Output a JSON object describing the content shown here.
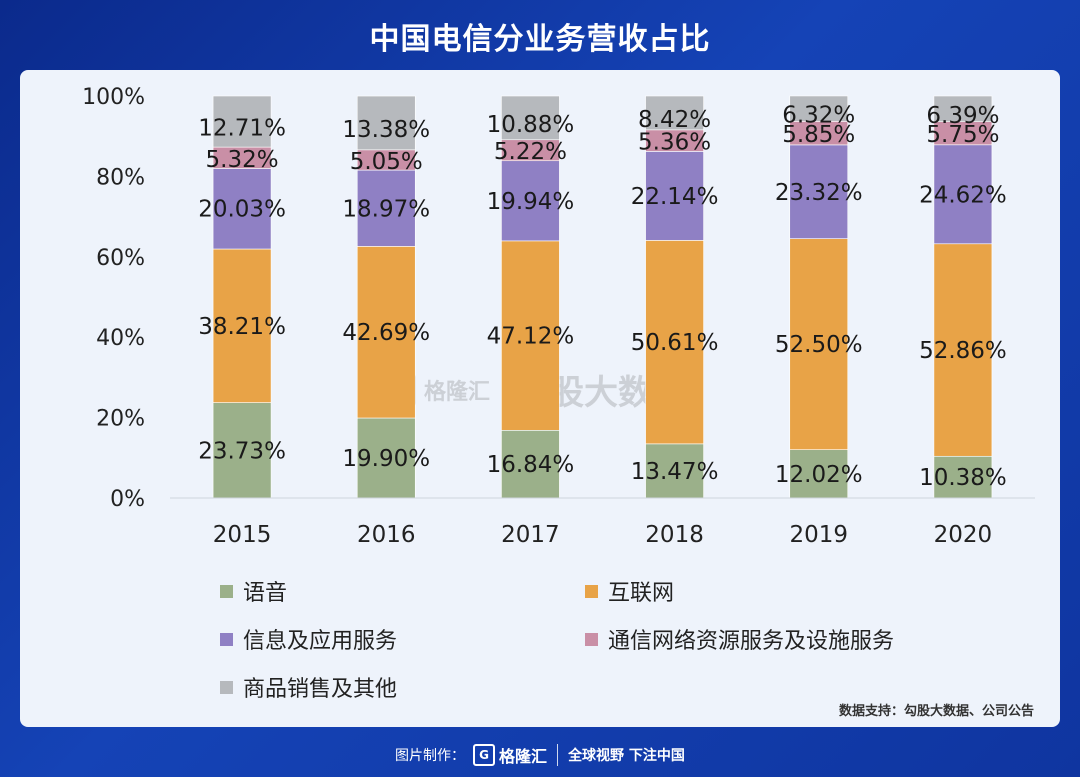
{
  "header": {
    "title": "中国电信分业务营收占比"
  },
  "chart_data": {
    "type": "stacked-bar",
    "title": "中国电信分业务营收占比",
    "categories": [
      "2015",
      "2016",
      "2017",
      "2018",
      "2019",
      "2020"
    ],
    "ylim": [
      0,
      100
    ],
    "yticks": [
      "0%",
      "20%",
      "40%",
      "60%",
      "80%",
      "100%"
    ],
    "series": [
      {
        "name": "语音",
        "color": "#9bb08a",
        "values": [
          23.73,
          19.9,
          16.84,
          13.47,
          12.02,
          10.38
        ],
        "labels": [
          "23.73%",
          "19.90%",
          "16.84%",
          "13.47%",
          "12.02%",
          "10.38%"
        ]
      },
      {
        "name": "互联网",
        "color": "#e8a347",
        "values": [
          38.21,
          42.69,
          47.12,
          50.61,
          52.5,
          52.86
        ],
        "labels": [
          "38.21%",
          "42.69%",
          "47.12%",
          "50.61%",
          "52.50%",
          "52.86%"
        ]
      },
      {
        "name": "信息及应用服务",
        "color": "#8f80c4",
        "values": [
          20.03,
          18.97,
          19.94,
          22.14,
          23.32,
          24.62
        ],
        "labels": [
          "20.03%",
          "18.97%",
          "19.94%",
          "22.14%",
          "23.32%",
          "24.62%"
        ]
      },
      {
        "name": "通信网络资源服务及设施服务",
        "color": "#c98fa6",
        "values": [
          5.32,
          5.05,
          5.22,
          5.36,
          5.85,
          5.75
        ],
        "labels": [
          "5.32%",
          "5.05%",
          "5.22%",
          "5.36%",
          "5.85%",
          "5.75%"
        ]
      },
      {
        "name": "商品销售及其他",
        "color": "#b6b9bd",
        "values": [
          12.71,
          13.38,
          10.88,
          8.42,
          6.32,
          6.39
        ],
        "labels": [
          "12.71%",
          "13.38%",
          "10.88%",
          "8.42%",
          "6.32%",
          "6.39%"
        ]
      }
    ]
  },
  "watermark": {
    "g": "G",
    "brand": "格隆汇",
    "text": "勾股大数据"
  },
  "source": "数据支持：勾股大数据、公司公告",
  "footer": {
    "made_by": "图片制作：",
    "g": "G",
    "brand": "格隆汇",
    "slogan": "全球视野 下注中国"
  }
}
